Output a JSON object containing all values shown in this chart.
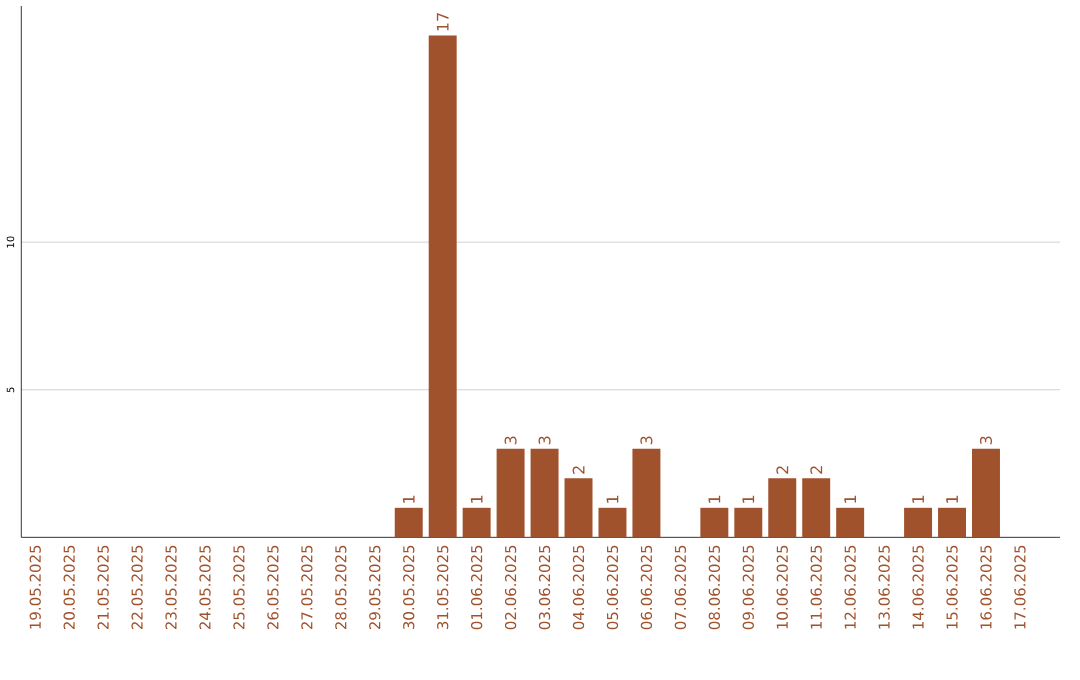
{
  "chart_data": {
    "type": "bar",
    "categories": [
      "19.05.2025",
      "20.05.2025",
      "21.05.2025",
      "22.05.2025",
      "23.05.2025",
      "24.05.2025",
      "25.05.2025",
      "26.05.2025",
      "27.05.2025",
      "28.05.2025",
      "29.05.2025",
      "30.05.2025",
      "31.05.2025",
      "01.06.2025",
      "02.06.2025",
      "03.06.2025",
      "04.06.2025",
      "05.06.2025",
      "06.06.2025",
      "07.06.2025",
      "08.06.2025",
      "09.06.2025",
      "10.06.2025",
      "11.06.2025",
      "12.06.2025",
      "13.06.2025",
      "14.06.2025",
      "15.06.2025",
      "16.06.2025",
      "17.06.2025"
    ],
    "values": [
      0,
      0,
      0,
      0,
      0,
      0,
      0,
      0,
      0,
      0,
      0,
      1,
      17,
      1,
      3,
      3,
      2,
      1,
      3,
      0,
      1,
      1,
      2,
      2,
      1,
      0,
      1,
      1,
      3,
      0
    ],
    "value_labels": [
      null,
      null,
      null,
      null,
      null,
      null,
      null,
      null,
      null,
      null,
      null,
      "1",
      "17",
      "1",
      "3",
      "3",
      "2",
      "1",
      "3",
      null,
      "1",
      "1",
      "2",
      "2",
      "1",
      null,
      "1",
      "1",
      "3",
      null
    ],
    "color": "#a0522d",
    "ylim": [
      0,
      18
    ],
    "yticks": [
      5,
      10
    ],
    "grid": "y"
  }
}
